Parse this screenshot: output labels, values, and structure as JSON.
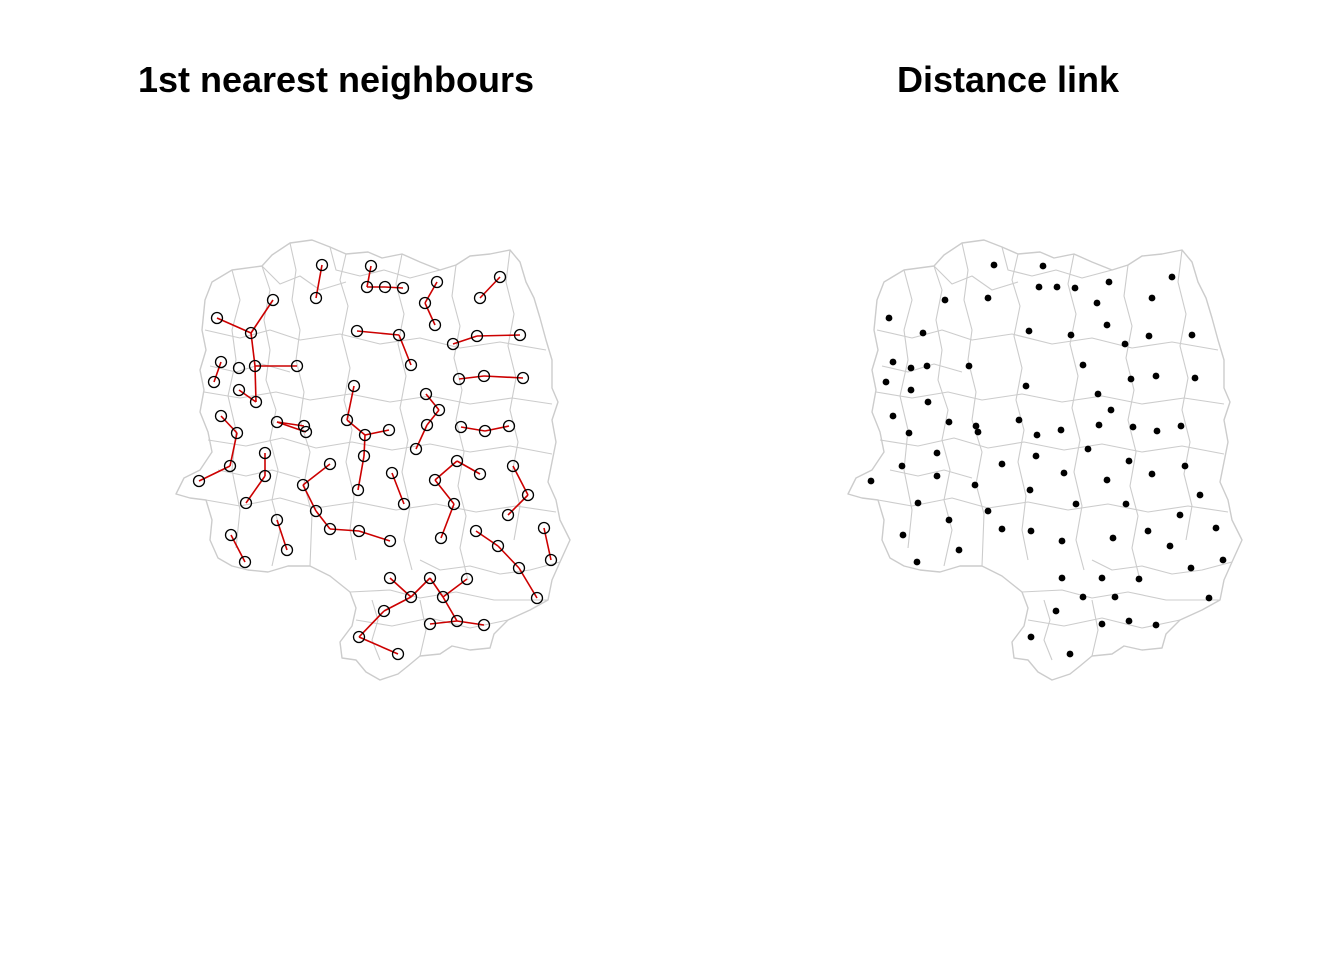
{
  "panels": [
    {
      "id": "left",
      "title": "1st nearest neighbours",
      "point_style": "hollow",
      "show_links": true
    },
    {
      "id": "right",
      "title": "Distance link",
      "point_style": "filled",
      "show_links": false
    }
  ],
  "colors": {
    "boundary": "#cccccc",
    "link": "#cc0000",
    "point": "#000000",
    "background": "#ffffff"
  }
}
